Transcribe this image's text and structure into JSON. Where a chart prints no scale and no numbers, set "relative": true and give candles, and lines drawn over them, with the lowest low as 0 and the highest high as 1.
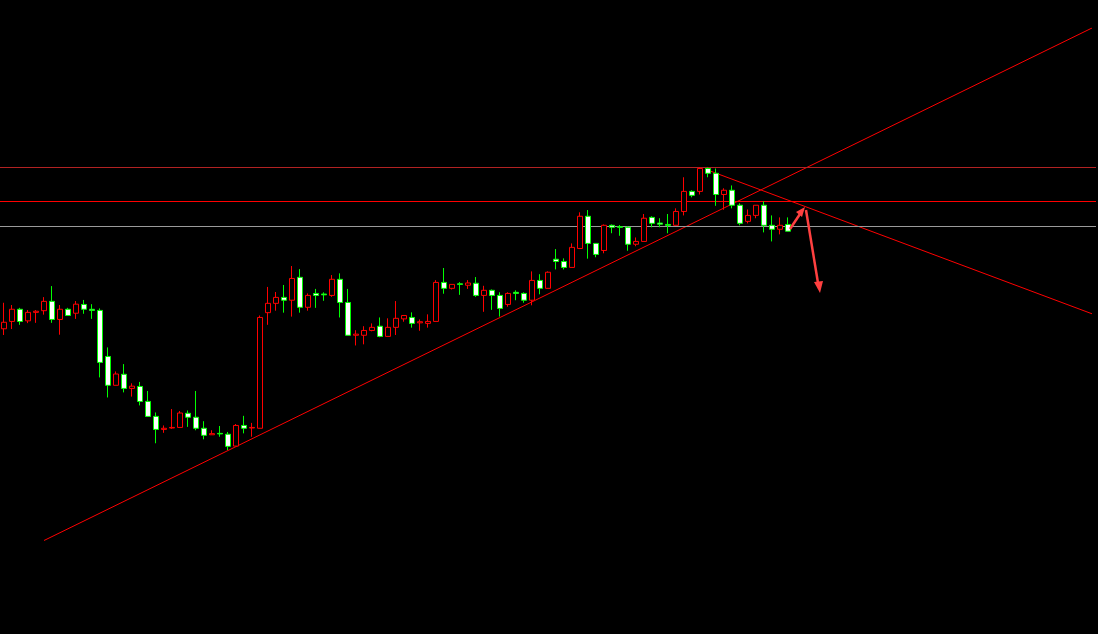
{
  "chart_data": {
    "type": "candlestick",
    "relative": true,
    "categories": [
      null,
      null,
      null,
      null,
      null,
      null,
      null,
      null,
      null,
      null,
      null,
      null,
      null,
      null,
      null,
      null,
      null,
      null,
      null,
      null,
      null,
      null,
      null,
      null,
      null,
      null,
      null,
      null,
      null,
      null,
      null,
      null,
      null,
      null,
      null,
      null,
      null,
      null,
      null,
      null,
      null,
      null,
      null,
      null,
      null,
      null,
      null,
      null,
      null,
      null,
      null,
      null,
      null,
      null,
      null,
      null,
      null,
      null,
      null,
      null,
      null,
      null,
      null,
      null,
      null,
      null,
      null,
      null,
      null,
      null,
      null,
      null,
      null,
      null,
      null,
      null,
      null,
      null,
      null,
      null,
      null,
      null,
      null,
      null,
      null,
      null,
      null,
      null,
      null,
      null,
      null,
      null,
      null,
      null,
      null,
      null,
      null,
      null,
      null,
      null,
      null,
      null,
      null,
      null,
      null,
      null,
      null,
      null,
      null,
      null,
      null,
      null,
      null,
      null,
      null,
      null,
      null,
      null,
      null,
      null,
      null,
      null,
      null,
      null,
      null,
      null,
      null,
      null,
      null,
      null,
      null,
      null,
      null,
      null,
      null,
      null,
      null
    ],
    "ohlc": [
      [
        0.429,
        0.521,
        0.407,
        0.452
      ],
      [
        0.455,
        0.513,
        0.428,
        0.498
      ],
      [
        0.498,
        0.503,
        0.443,
        0.455
      ],
      [
        0.457,
        0.495,
        0.449,
        0.487
      ],
      [
        0.487,
        0.495,
        0.45,
        0.491
      ],
      [
        0.493,
        0.541,
        0.479,
        0.526
      ],
      [
        0.526,
        0.58,
        0.45,
        0.462
      ],
      [
        0.462,
        0.513,
        0.408,
        0.498
      ],
      [
        0.498,
        0.503,
        0.476,
        0.476
      ],
      [
        0.484,
        0.527,
        0.464,
        0.516
      ],
      [
        0.515,
        0.531,
        0.482,
        0.498
      ],
      [
        0.498,
        0.516,
        0.464,
        0.494
      ],
      [
        0.494,
        0.501,
        0.257,
        0.31
      ],
      [
        0.331,
        0.363,
        0.186,
        0.229
      ],
      [
        0.229,
        0.278,
        0.229,
        0.269
      ],
      [
        0.268,
        0.304,
        0.204,
        0.218
      ],
      [
        0.218,
        0.236,
        0.189,
        0.226
      ],
      [
        0.225,
        0.241,
        0.158,
        0.172
      ],
      [
        0.172,
        0.209,
        0.119,
        0.119
      ],
      [
        0.119,
        0.133,
        0.024,
        0.073
      ],
      [
        0.073,
        0.087,
        0.061,
        0.077
      ],
      [
        0.078,
        0.145,
        0.075,
        0.08
      ],
      [
        0.08,
        0.138,
        0.08,
        0.131
      ],
      [
        0.13,
        0.14,
        0.082,
        0.116
      ],
      [
        0.116,
        0.209,
        0.07,
        0.077
      ],
      [
        0.077,
        0.102,
        0.038,
        0.052
      ],
      [
        0.054,
        0.07,
        0.054,
        0.058
      ],
      [
        0.059,
        0.085,
        0.047,
        0.057
      ],
      [
        0.056,
        0.064,
        0,
        0.013
      ],
      [
        0.014,
        0.092,
        0.014,
        0.087
      ],
      [
        0.087,
        0.121,
        0.059,
        0.077
      ],
      [
        0.078,
        0.096,
        0.047,
        0.08
      ],
      [
        0.077,
        0.476,
        0.077,
        0.469
      ],
      [
        0.486,
        0.577,
        0.443,
        0.519
      ],
      [
        0.519,
        0.559,
        0.493,
        0.54
      ],
      [
        0.54,
        0.584,
        0.486,
        0.53
      ],
      [
        0.53,
        0.651,
        0.472,
        0.607
      ],
      [
        0.611,
        0.64,
        0.486,
        0.505
      ],
      [
        0.505,
        0.554,
        0.493,
        0.547
      ],
      [
        0.554,
        0.57,
        0.503,
        0.547
      ],
      [
        0.552,
        0.558,
        0.528,
        0.549
      ],
      [
        0.547,
        0.619,
        0.542,
        0.604
      ],
      [
        0.604,
        0.625,
        0.469,
        0.522
      ],
      [
        0.522,
        0.57,
        0.406,
        0.406
      ],
      [
        0.406,
        0.424,
        0.37,
        0.41
      ],
      [
        0.406,
        0.438,
        0.374,
        0.423
      ],
      [
        0.423,
        0.448,
        0.42,
        0.434
      ],
      [
        0.438,
        0.469,
        0.399,
        0.402
      ],
      [
        0.402,
        0.466,
        0.402,
        0.434
      ],
      [
        0.434,
        0.527,
        0.407,
        0.466
      ],
      [
        0.464,
        0.476,
        0.454,
        0.476
      ],
      [
        0.469,
        0.487,
        0.433,
        0.448
      ],
      [
        0.45,
        0.462,
        0.422,
        0.454
      ],
      [
        0.448,
        0.48,
        0.433,
        0.455
      ],
      [
        0.455,
        0.601,
        0.455,
        0.593
      ],
      [
        0.593,
        0.644,
        0.553,
        0.572
      ],
      [
        0.572,
        0.586,
        0.568,
        0.586
      ],
      [
        0.588,
        0.594,
        0.549,
        0.586
      ],
      [
        0.583,
        0.601,
        0.57,
        0.591
      ],
      [
        0.59,
        0.612,
        0.542,
        0.547
      ],
      [
        0.547,
        0.581,
        0.489,
        0.565
      ],
      [
        0.565,
        0.568,
        0.496,
        0.547
      ],
      [
        0.547,
        0.558,
        0.472,
        0.501
      ],
      [
        0.515,
        0.558,
        0.507,
        0.554
      ],
      [
        0.558,
        0.565,
        0.53,
        0.554
      ],
      [
        0.554,
        0.558,
        0.521,
        0.53
      ],
      [
        0.53,
        0.632,
        0.512,
        0.6
      ],
      [
        0.6,
        0.622,
        0.551,
        0.572
      ],
      [
        0.572,
        0.632,
        0.572,
        0.629
      ],
      [
        0.675,
        0.711,
        0.639,
        0.667
      ],
      [
        0.667,
        0.678,
        0.639,
        0.646
      ],
      [
        0.646,
        0.731,
        0.646,
        0.717
      ],
      [
        0.713,
        0.841,
        0.711,
        0.827
      ],
      [
        0.827,
        0.849,
        0.677,
        0.731
      ],
      [
        0.731,
        0.731,
        0.682,
        0.692
      ],
      [
        0.706,
        0.798,
        0.696,
        0.795
      ],
      [
        0.795,
        0.798,
        0.767,
        0.788
      ],
      [
        0.79,
        0.796,
        0.758,
        0.788
      ],
      [
        0.788,
        0.791,
        0.705,
        0.728
      ],
      [
        0.728,
        0.752,
        0.721,
        0.738
      ],
      [
        0.738,
        0.835,
        0.738,
        0.82
      ],
      [
        0.823,
        0.827,
        0.788,
        0.802
      ],
      [
        0.803,
        0.82,
        0.788,
        0.799
      ],
      [
        0.798,
        0.835,
        0.767,
        0.795
      ],
      [
        0.795,
        0.855,
        0.795,
        0.844
      ],
      [
        0.844,
        0.965,
        0.83,
        0.915
      ],
      [
        0.915,
        0.919,
        0.894,
        0.901
      ],
      [
        0.915,
        1,
        0.904,
        0.996
      ],
      [
        0.996,
        1,
        0.965,
        0.979
      ],
      [
        0.979,
        0.996,
        0.864,
        0.904
      ],
      [
        0.904,
        0.926,
        0.85,
        0.919
      ],
      [
        0.919,
        0.936,
        0.855,
        0.866
      ],
      [
        0.866,
        0.873,
        0.795,
        0.802
      ],
      [
        0.809,
        0.851,
        0.802,
        0.83
      ],
      [
        0.83,
        0.866,
        0.82,
        0.866
      ],
      [
        0.866,
        0.88,
        0.77,
        0.795
      ],
      [
        0.795,
        0.83,
        0.738,
        0.781
      ],
      [
        0.781,
        0.823,
        0.763,
        0.795
      ],
      [
        0.798,
        0.823,
        0.774,
        0.774
      ],
      null,
      null,
      null,
      null,
      null,
      null,
      null,
      null,
      null,
      null,
      null,
      null,
      null,
      null,
      null,
      null,
      null,
      null,
      null,
      null,
      null,
      null,
      null,
      null,
      null,
      null,
      null,
      null,
      null,
      null,
      null,
      null,
      null,
      null,
      null,
      null,
      null,
      null
    ],
    "colors": [
      "#ff0000",
      "#ff0000",
      "#00ff00",
      "#ff0000",
      "#ff0000",
      "#ff0000",
      "#00ff00",
      "#ff0000",
      "#00ff00",
      "#ff0000",
      "#00ff00",
      "#00ff00",
      "#00ff00",
      "#00ff00",
      "#ff0000",
      "#00ff00",
      "#ff0000",
      "#00ff00",
      "#00ff00",
      "#00ff00",
      "#ff0000",
      "#ff0000",
      "#ff0000",
      "#00ff00",
      "#00ff00",
      "#00ff00",
      "#ff0000",
      "#00ff00",
      "#00ff00",
      "#ff0000",
      "#00ff00",
      "#ff0000",
      "#ff0000",
      "#ff0000",
      "#ff0000",
      "#00ff00",
      "#ff0000",
      "#00ff00",
      "#ff0000",
      "#00ff00",
      "#00ff00",
      "#ff0000",
      "#00ff00",
      "#00ff00",
      "#ff0000",
      "#ff0000",
      "#ff0000",
      "#00ff00",
      "#ff0000",
      "#ff0000",
      "#ff0000",
      "#00ff00",
      "#ff0000",
      "#ff0000",
      "#ff0000",
      "#00ff00",
      "#ff0000",
      "#00ff00",
      "#ff0000",
      "#00ff00",
      "#ff0000",
      "#00ff00",
      "#00ff00",
      "#ff0000",
      "#00ff00",
      "#00ff00",
      "#ff0000",
      "#00ff00",
      "#ff0000",
      "#00ff00",
      "#00ff00",
      "#ff0000",
      "#ff0000",
      "#00ff00",
      "#00ff00",
      "#ff0000",
      "#00ff00",
      "#00ff00",
      "#00ff00",
      "#ff0000",
      "#ff0000",
      "#00ff00",
      "#00ff00",
      "#00ff00",
      "#ff0000",
      "#ff0000",
      "#00ff00",
      "#ff0000",
      "#00ff00",
      "#00ff00",
      "#ff0000",
      "#00ff00",
      "#00ff00",
      "#ff0000",
      "#ff0000",
      "#00ff00",
      "#00ff00",
      "#ff0000",
      "#00ff00",
      null,
      null,
      null,
      null,
      null,
      null,
      null,
      null,
      null,
      null,
      null,
      null,
      null,
      null,
      null,
      null,
      null,
      null,
      null,
      null,
      null,
      null,
      null,
      null,
      null,
      null,
      null,
      null,
      null,
      null,
      null,
      null,
      null,
      null,
      null,
      null,
      null,
      null
    ],
    "series": [
      {
        "type": "line",
        "color": "#ff0000",
        "values": [
          null,
          null,
          null,
          null,
          null,
          -0.32,
          null,
          null,
          null,
          null,
          null,
          null,
          null,
          null,
          null,
          null,
          null,
          null,
          null,
          null,
          null,
          null,
          null,
          null,
          null,
          null,
          null,
          null,
          null,
          null,
          null,
          null,
          null,
          null,
          null,
          null,
          null,
          null,
          null,
          null,
          null,
          null,
          null,
          null,
          null,
          null,
          null,
          null,
          null,
          null,
          null,
          null,
          null,
          null,
          null,
          null,
          null,
          null,
          null,
          null,
          null,
          null,
          null,
          null,
          null,
          null,
          null,
          null,
          null,
          null,
          null,
          null,
          null,
          null,
          null,
          null,
          null,
          null,
          null,
          null,
          null,
          null,
          null,
          null,
          null,
          null,
          null,
          null,
          null,
          null,
          null,
          null,
          null,
          null,
          null,
          null,
          null,
          null,
          null,
          null,
          null,
          null,
          null,
          null,
          null,
          null,
          null,
          null,
          null,
          null,
          null,
          null,
          null,
          null,
          null,
          null,
          null,
          null,
          null,
          null,
          null,
          null,
          null,
          null,
          null,
          null,
          null,
          null,
          null,
          null,
          null,
          null,
          null,
          null,
          null,
          null,
          1.493
        ]
      },
      {
        "type": "line",
        "color": "#ff0000",
        "values": [
          null,
          null,
          null,
          null,
          null,
          null,
          null,
          null,
          null,
          null,
          null,
          null,
          null,
          null,
          null,
          null,
          null,
          null,
          null,
          null,
          null,
          null,
          null,
          null,
          null,
          null,
          null,
          null,
          null,
          null,
          null,
          null,
          null,
          null,
          null,
          null,
          null,
          null,
          null,
          null,
          null,
          null,
          null,
          null,
          null,
          null,
          null,
          null,
          null,
          null,
          null,
          null,
          null,
          null,
          null,
          null,
          null,
          null,
          null,
          null,
          null,
          null,
          null,
          null,
          null,
          null,
          null,
          null,
          null,
          null,
          null,
          null,
          null,
          null,
          null,
          null,
          null,
          null,
          null,
          null,
          null,
          null,
          null,
          null,
          null,
          null,
          null,
          null,
          0.99,
          null,
          null,
          null,
          null,
          null,
          null,
          null,
          null,
          null,
          null,
          null,
          null,
          null,
          null,
          null,
          null,
          null,
          null,
          null,
          null,
          null,
          null,
          null,
          null,
          null,
          null,
          null,
          null,
          null,
          null,
          null,
          null,
          null,
          null,
          null,
          null,
          null,
          null,
          null,
          null,
          null,
          null,
          null,
          null,
          null,
          null,
          null,
          0.482
        ]
      }
    ],
    "ref_lines": [
      {
        "axis": "y",
        "value": 1,
        "color": "#b22222"
      },
      {
        "axis": "y",
        "value": 0.883,
        "color": "#ff0000"
      },
      {
        "axis": "y",
        "value": 0.789,
        "color": "#9a9a9a"
      }
    ]
  }
}
